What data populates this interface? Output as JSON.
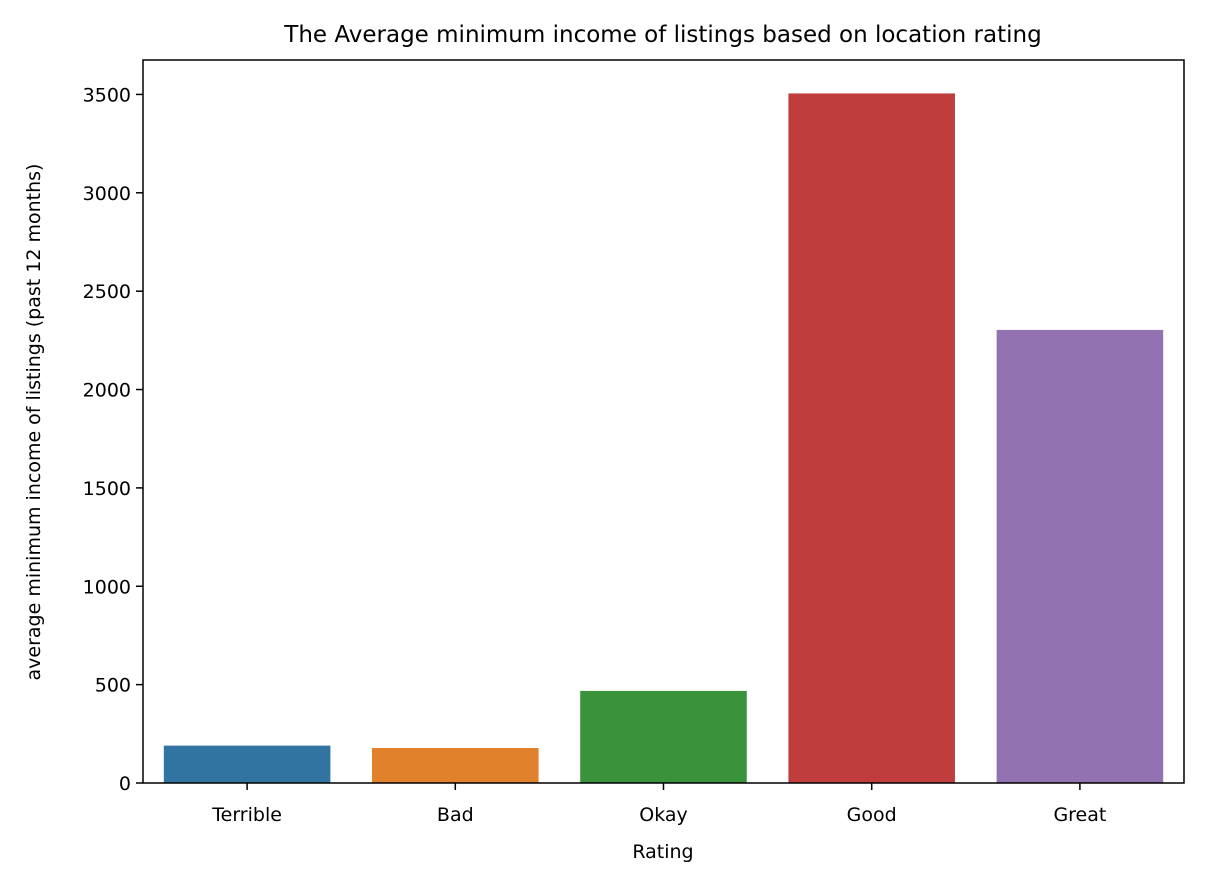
{
  "chart_data": {
    "type": "bar",
    "title": "The Average minimum income of listings based on location rating",
    "xlabel": "Rating",
    "ylabel": "average minimum income of listings (past 12 months)",
    "categories": [
      "Terrible",
      "Bad",
      "Okay",
      "Good",
      "Great"
    ],
    "values": [
      190,
      178,
      468,
      3505,
      2303
    ],
    "colors": [
      "#3274a1",
      "#e1812c",
      "#3a923a",
      "#c03d3e",
      "#9372b2"
    ],
    "ylim": [
      0,
      3675
    ],
    "yticks": [
      0,
      500,
      1000,
      1500,
      2000,
      2500,
      3000,
      3500
    ],
    "grid": false
  }
}
